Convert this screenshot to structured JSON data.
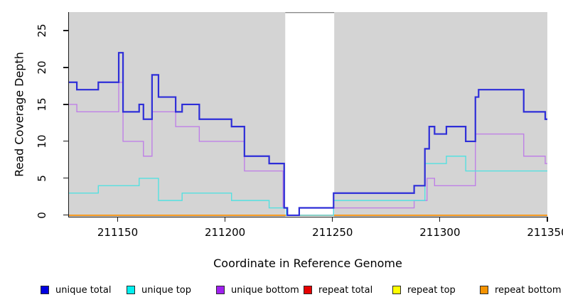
{
  "chart_data": {
    "type": "line",
    "subtype": "step",
    "title": "",
    "xlabel": "Coordinate in Reference Genome",
    "ylabel": "Read Coverage Depth",
    "x_domain": [
      211127,
      211350
    ],
    "y_domain": [
      -0.2,
      27.5
    ],
    "x_ticks": [
      211150,
      211200,
      211250,
      211300,
      211350
    ],
    "y_ticks": [
      0,
      5,
      10,
      15,
      20,
      25
    ],
    "grid": false,
    "legend_position": "bottom",
    "plot_background_color": "#d4d4d4",
    "gap_band": {
      "x_start": 211228,
      "x_end": 211250.8,
      "fill": "#ffffff",
      "top_border_color": "#8a8a8a"
    },
    "series": [
      {
        "name": "unique total",
        "color": "#2e2ed8",
        "legend_color": "#0000e0",
        "line_width": 2.2,
        "steps": [
          [
            211127,
            18
          ],
          [
            211131,
            17
          ],
          [
            211141,
            18
          ],
          [
            211150.5,
            22
          ],
          [
            211152.5,
            14
          ],
          [
            211160,
            15
          ],
          [
            211162,
            13
          ],
          [
            211166,
            19
          ],
          [
            211169,
            16
          ],
          [
            211177,
            14
          ],
          [
            211180,
            15
          ],
          [
            211188,
            13
          ],
          [
            211203,
            12
          ],
          [
            211209,
            8
          ],
          [
            211220.5,
            7
          ],
          [
            211227.5,
            1
          ],
          [
            211229,
            0
          ],
          [
            211234.5,
            1
          ],
          [
            211250.5,
            3
          ],
          [
            211288,
            4
          ],
          [
            211293,
            9
          ],
          [
            211295,
            12
          ],
          [
            211297.5,
            11
          ],
          [
            211303,
            12
          ],
          [
            211312,
            10
          ],
          [
            211316.5,
            16
          ],
          [
            211318,
            17
          ],
          [
            211339,
            14
          ],
          [
            211349,
            13
          ]
        ]
      },
      {
        "name": "unique top",
        "color": "#55e0e0",
        "legend_color": "#00f0f0",
        "line_width": 1.4,
        "steps": [
          [
            211127,
            3
          ],
          [
            211141,
            4
          ],
          [
            211160,
            5
          ],
          [
            211169,
            2
          ],
          [
            211180,
            3
          ],
          [
            211203,
            2
          ],
          [
            211220.5,
            1
          ],
          [
            211228.5,
            0
          ],
          [
            211250.5,
            2
          ],
          [
            211293,
            7
          ],
          [
            211303,
            8
          ],
          [
            211312,
            6
          ]
        ]
      },
      {
        "name": "unique bottom",
        "color": "#bf80e6",
        "legend_color": "#a020f0",
        "line_width": 1.4,
        "steps": [
          [
            211127,
            15
          ],
          [
            211131,
            14
          ],
          [
            211150.5,
            18
          ],
          [
            211152.5,
            10
          ],
          [
            211162,
            8
          ],
          [
            211166,
            14
          ],
          [
            211177,
            12
          ],
          [
            211188,
            10
          ],
          [
            211209,
            6
          ],
          [
            211227,
            1
          ],
          [
            211229,
            0
          ],
          [
            211250.5,
            1
          ],
          [
            211288,
            2
          ],
          [
            211294,
            5
          ],
          [
            211297.5,
            4
          ],
          [
            211316.5,
            11
          ],
          [
            211339,
            8
          ],
          [
            211349,
            7
          ]
        ]
      },
      {
        "name": "repeat total",
        "color": "#cc0000",
        "legend_color": "#e60000",
        "line_width": 1.2,
        "steps": [
          [
            211127,
            0
          ]
        ]
      },
      {
        "name": "repeat top",
        "color": "#f0f000",
        "legend_color": "#ffff00",
        "line_width": 1.2,
        "steps": [
          [
            211127,
            0
          ]
        ]
      },
      {
        "name": "repeat bottom",
        "color": "#f59314",
        "legend_color": "#f59300",
        "line_width": 1.8,
        "steps": [
          [
            211127,
            0
          ]
        ]
      }
    ],
    "draw_order": [
      "repeat total",
      "repeat top",
      "repeat bottom",
      "unique bottom",
      "unique top",
      "unique total"
    ]
  }
}
